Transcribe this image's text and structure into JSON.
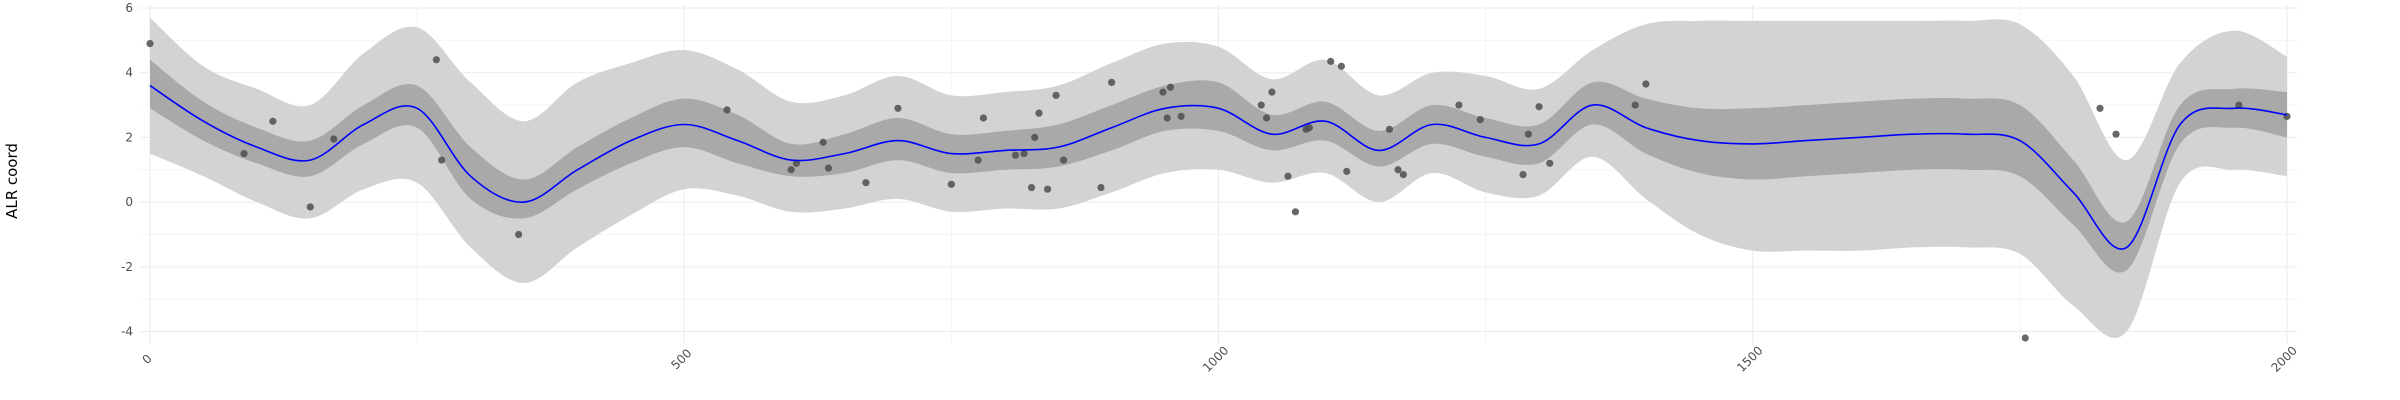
{
  "chart_data": {
    "type": "line",
    "title": "",
    "xlabel": "",
    "ylabel": "ALR coord",
    "xlim": [
      0,
      2000
    ],
    "ylim": [
      -4.2,
      6
    ],
    "x_ticks": [
      0,
      500,
      1000,
      1500,
      2000
    ],
    "x_tick_labels": [
      "0",
      "500",
      "1000",
      "1500",
      "2000"
    ],
    "y_ticks": [
      -4,
      -2,
      0,
      2,
      4,
      6
    ],
    "y_tick_labels": [
      "-4",
      "-2",
      "0",
      "2",
      "4",
      "6"
    ],
    "grid": true,
    "legend": "none",
    "colors": {
      "mean_line": "#0000ff",
      "inner_band": "#a9a9a9",
      "outer_band": "#d3d3d3",
      "points": "#4d4d4d",
      "grid": "#ebebeb"
    },
    "mean_curve": {
      "x": [
        0,
        50,
        100,
        150,
        200,
        250,
        300,
        350,
        400,
        450,
        500,
        550,
        600,
        650,
        700,
        750,
        800,
        850,
        900,
        950,
        1000,
        1050,
        1100,
        1150,
        1200,
        1250,
        1300,
        1350,
        1400,
        1450,
        1500,
        1550,
        1600,
        1650,
        1700,
        1750,
        1800,
        1850,
        1900,
        1950,
        2000
      ],
      "y": [
        3.6,
        2.5,
        1.7,
        1.3,
        2.4,
        2.9,
        0.8,
        0.0,
        1.0,
        1.9,
        2.4,
        1.9,
        1.3,
        1.5,
        1.9,
        1.5,
        1.6,
        1.7,
        2.3,
        2.9,
        2.9,
        2.1,
        2.5,
        1.6,
        2.4,
        2.0,
        1.8,
        3.0,
        2.3,
        1.9,
        1.8,
        1.9,
        2.0,
        2.1,
        2.1,
        1.9,
        0.3,
        -1.4,
        2.4,
        2.9,
        2.7
      ]
    },
    "inner_band": {
      "lower": [
        2.9,
        1.9,
        1.2,
        0.8,
        1.8,
        2.3,
        0.1,
        -0.5,
        0.4,
        1.2,
        1.7,
        1.2,
        0.8,
        0.9,
        1.3,
        0.9,
        1.0,
        1.1,
        1.6,
        2.2,
        2.2,
        1.6,
        1.9,
        1.1,
        1.8,
        1.4,
        1.2,
        2.4,
        1.5,
        0.9,
        0.7,
        0.8,
        0.9,
        1.0,
        1.0,
        0.8,
        -0.7,
        -2.1,
        1.8,
        2.3,
        2.0
      ],
      "upper": [
        4.4,
        3.1,
        2.3,
        1.9,
        3.0,
        3.6,
        1.7,
        0.7,
        1.7,
        2.6,
        3.2,
        2.7,
        1.8,
        2.1,
        2.6,
        2.1,
        2.2,
        2.4,
        3.0,
        3.6,
        3.7,
        2.7,
        3.1,
        2.2,
        3.0,
        2.6,
        2.4,
        3.7,
        3.2,
        2.9,
        2.9,
        3.0,
        3.1,
        3.2,
        3.2,
        3.0,
        1.3,
        -0.6,
        3.0,
        3.5,
        3.4
      ]
    },
    "outer_band": {
      "lower": [
        1.5,
        0.8,
        0.0,
        -0.5,
        0.4,
        0.6,
        -1.4,
        -2.5,
        -1.4,
        -0.4,
        0.4,
        0.2,
        -0.3,
        -0.2,
        0.1,
        -0.3,
        -0.2,
        -0.2,
        0.3,
        0.9,
        1.0,
        0.6,
        0.9,
        0.0,
        0.9,
        0.3,
        0.2,
        1.4,
        0.1,
        -1.0,
        -1.5,
        -1.5,
        -1.5,
        -1.4,
        -1.4,
        -1.6,
        -3.2,
        -4.0,
        0.6,
        1.0,
        0.8
      ],
      "upper": [
        5.7,
        4.2,
        3.5,
        3.0,
        4.6,
        5.4,
        3.7,
        2.5,
        3.7,
        4.3,
        4.7,
        4.1,
        3.1,
        3.3,
        3.9,
        3.3,
        3.4,
        3.6,
        4.3,
        4.9,
        4.8,
        3.8,
        4.4,
        3.3,
        4.0,
        3.9,
        3.5,
        4.7,
        5.5,
        5.6,
        5.6,
        5.6,
        5.6,
        5.6,
        5.6,
        5.5,
        3.9,
        1.3,
        4.3,
        5.3,
        4.5
      ]
    },
    "points": [
      {
        "x": 0,
        "y": 4.9
      },
      {
        "x": 88,
        "y": 1.5
      },
      {
        "x": 115,
        "y": 2.5
      },
      {
        "x": 150,
        "y": -0.15
      },
      {
        "x": 172,
        "y": 1.95
      },
      {
        "x": 268,
        "y": 4.4
      },
      {
        "x": 273,
        "y": 1.3
      },
      {
        "x": 345,
        "y": -1.0
      },
      {
        "x": 540,
        "y": 2.85
      },
      {
        "x": 600,
        "y": 1.0
      },
      {
        "x": 605,
        "y": 1.2
      },
      {
        "x": 630,
        "y": 1.85
      },
      {
        "x": 635,
        "y": 1.05
      },
      {
        "x": 670,
        "y": 0.6
      },
      {
        "x": 700,
        "y": 2.9
      },
      {
        "x": 750,
        "y": 0.55
      },
      {
        "x": 775,
        "y": 1.3
      },
      {
        "x": 780,
        "y": 2.6
      },
      {
        "x": 810,
        "y": 1.45
      },
      {
        "x": 818,
        "y": 1.5
      },
      {
        "x": 825,
        "y": 0.45
      },
      {
        "x": 828,
        "y": 2.0
      },
      {
        "x": 832,
        "y": 2.75
      },
      {
        "x": 840,
        "y": 0.4
      },
      {
        "x": 848,
        "y": 3.3
      },
      {
        "x": 855,
        "y": 1.3
      },
      {
        "x": 890,
        "y": 0.45
      },
      {
        "x": 900,
        "y": 3.7
      },
      {
        "x": 948,
        "y": 3.4
      },
      {
        "x": 952,
        "y": 2.6
      },
      {
        "x": 955,
        "y": 3.55
      },
      {
        "x": 965,
        "y": 2.65
      },
      {
        "x": 1040,
        "y": 3.0
      },
      {
        "x": 1045,
        "y": 2.6
      },
      {
        "x": 1050,
        "y": 3.4
      },
      {
        "x": 1065,
        "y": 0.8
      },
      {
        "x": 1072,
        "y": -0.3
      },
      {
        "x": 1082,
        "y": 2.25
      },
      {
        "x": 1085,
        "y": 2.3
      },
      {
        "x": 1105,
        "y": 4.35
      },
      {
        "x": 1115,
        "y": 4.2
      },
      {
        "x": 1120,
        "y": 0.95
      },
      {
        "x": 1160,
        "y": 2.25
      },
      {
        "x": 1168,
        "y": 1.0
      },
      {
        "x": 1173,
        "y": 0.85
      },
      {
        "x": 1225,
        "y": 3.0
      },
      {
        "x": 1245,
        "y": 2.55
      },
      {
        "x": 1285,
        "y": 0.85
      },
      {
        "x": 1290,
        "y": 2.1
      },
      {
        "x": 1300,
        "y": 2.95
      },
      {
        "x": 1310,
        "y": 1.2
      },
      {
        "x": 1390,
        "y": 3.0
      },
      {
        "x": 1400,
        "y": 3.65
      },
      {
        "x": 1755,
        "y": -4.2
      },
      {
        "x": 1825,
        "y": 2.9
      },
      {
        "x": 1840,
        "y": 2.1
      },
      {
        "x": 1955,
        "y": 3.0
      },
      {
        "x": 2000,
        "y": 2.65
      }
    ]
  }
}
